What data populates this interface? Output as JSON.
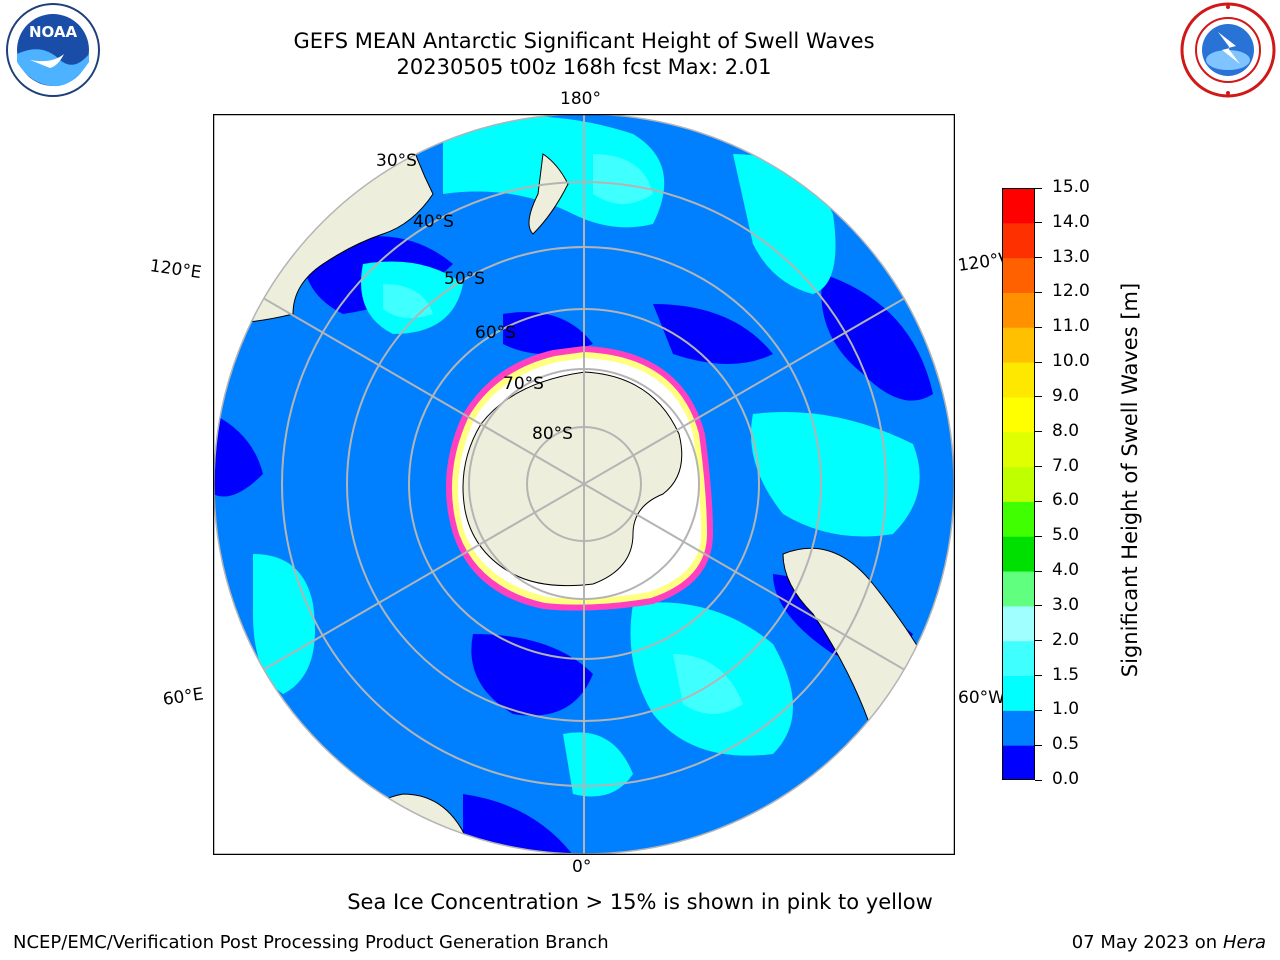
{
  "title": {
    "line1": "GEFS MEAN Antarctic Significant Height of Swell Waves",
    "line2": "20230505 t00z 168h fcst   Max: 2.01"
  },
  "logos": {
    "left": "noaa-logo",
    "left_text": "NOAA",
    "right": "nws-logo"
  },
  "map": {
    "projection": "south-polar-stereographic",
    "longitude_labels": {
      "top": "180°",
      "bottom": "0°",
      "upper_left": "120°E",
      "upper_right": "120°W",
      "lower_left": "60°E",
      "lower_right": "60°W"
    },
    "latitude_labels": [
      "30°S",
      "40°S",
      "50°S",
      "60°S",
      "70°S",
      "80°S"
    ],
    "colors": {
      "land": "#eeeedc",
      "ice_free_white": "#ffffff",
      "grid": "#b4b4b4",
      "sea_ice_edge_pink": "#ff40c0",
      "sea_ice_edge_yellow": "#ffff80"
    }
  },
  "colorbar": {
    "label": "Significant Height of Swell Waves [m]",
    "ticks": [
      "0.0",
      "0.5",
      "1.0",
      "1.5",
      "2.0",
      "3.0",
      "4.0",
      "5.0",
      "6.0",
      "7.0",
      "8.0",
      "9.0",
      "10.0",
      "11.0",
      "12.0",
      "13.0",
      "14.0",
      "15.0"
    ],
    "colors": [
      "#0000ff",
      "#0080ff",
      "#00ffff",
      "#40ffff",
      "#a0ffff",
      "#60ff80",
      "#00e000",
      "#40ff00",
      "#c0ff00",
      "#e0ff00",
      "#ffff00",
      "#ffe800",
      "#ffc000",
      "#ff9000",
      "#ff6000",
      "#ff3000",
      "#ff0000"
    ]
  },
  "footer": {
    "ice_note": "Sea Ice Concentration > 15% is shown in pink to yellow",
    "credit": "NCEP/EMC/Verification Post Processing Product Generation Branch",
    "date_prefix": "07 May 2023 on",
    "machine": "Hera"
  }
}
